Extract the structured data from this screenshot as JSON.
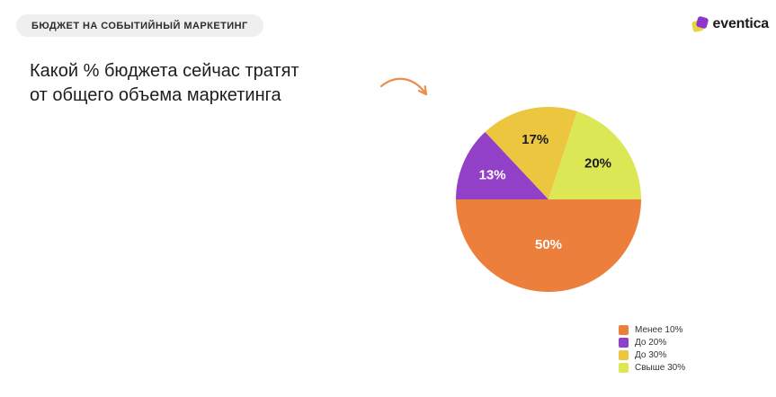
{
  "badge": {
    "label": "БЮДЖЕТ НА СОБЫТИЙНЫЙ МАРКЕТИНГ"
  },
  "logo": {
    "text": "eventica",
    "mark_colors": {
      "back": "#e8d43c",
      "front": "#8f35cc"
    }
  },
  "question": {
    "text": "Какой % бюджета сейчас тратят\nот общего объема маркетинга"
  },
  "icons": {
    "arrow": "curved-arrow-down-right",
    "arrow_color": "#ee8c4b",
    "logo_mark": "overlapping-rounded-squares"
  },
  "chart_data": {
    "type": "pie",
    "title": "Какой % бюджета сейчас тратят от общего объема маркетинга",
    "start_angle_deg": 90,
    "legend_position": "bottom-right",
    "slices": [
      {
        "label": "Менее 10%",
        "value": 50,
        "display": "50%",
        "color": "#ec7f3b",
        "label_color": "#ffffff"
      },
      {
        "label": "До 20%",
        "value": 13,
        "display": "13%",
        "color": "#9340c8",
        "label_color": "#ffffff"
      },
      {
        "label": "До 30%",
        "value": 17,
        "display": "17%",
        "color": "#ecc63f",
        "label_color": "#1c1c1c"
      },
      {
        "label": "Свыше 30%",
        "value": 20,
        "display": "20%",
        "color": "#dce755",
        "label_color": "#1c1c1c"
      }
    ]
  },
  "colors": {
    "background": "#ffffff",
    "badge_bg": "#efefef",
    "text_dark": "#1d1d1d"
  }
}
